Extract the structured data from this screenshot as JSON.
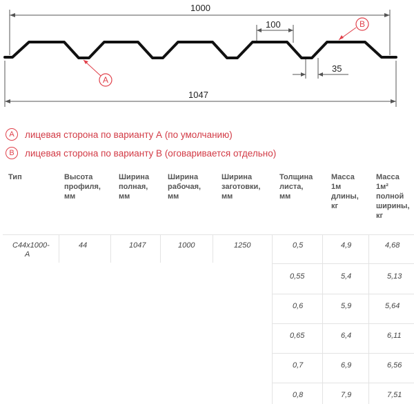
{
  "drawing": {
    "dim_top": "1000",
    "dim_pitch": "100",
    "dim_bottom_width": "35",
    "dim_total": "1047",
    "marker_a": "A",
    "marker_b": "B"
  },
  "legend": [
    {
      "letter": "A",
      "text": "лицевая сторона по варианту А (по умолчанию)"
    },
    {
      "letter": "B",
      "text": "лицевая сторона по варианту В (оговаривается отдельно)"
    }
  ],
  "table": {
    "headers": [
      [
        "Тип"
      ],
      [
        "Высота",
        "профиля,",
        "мм"
      ],
      [
        "Ширина",
        "полная,",
        "мм"
      ],
      [
        "Ширина",
        "рабочая,",
        "мм"
      ],
      [
        "Ширина",
        "заготовки,",
        "мм"
      ],
      [
        "Толщина",
        "листа,",
        "мм"
      ],
      [
        "Масса",
        "1м",
        "длины,",
        "кг"
      ],
      [
        "Масса",
        "1м²",
        "полной",
        "ширины,",
        "кг"
      ]
    ],
    "type_line1": "C44x1000-",
    "type_line2": "A",
    "height": "44",
    "full_width": "1047",
    "work_width": "1000",
    "blank_width": "1250",
    "rows": [
      {
        "thickness": "0,5",
        "mass_length": "4,9",
        "mass_area": "4,68"
      },
      {
        "thickness": "0,55",
        "mass_length": "5,4",
        "mass_area": "5,13"
      },
      {
        "thickness": "0,6",
        "mass_length": "5,9",
        "mass_area": "5,64"
      },
      {
        "thickness": "0,65",
        "mass_length": "6,4",
        "mass_area": "6,11"
      },
      {
        "thickness": "0,7",
        "mass_length": "6,9",
        "mass_area": "6,56"
      },
      {
        "thickness": "0,8",
        "mass_length": "7,9",
        "mass_area": "7,51"
      }
    ]
  }
}
